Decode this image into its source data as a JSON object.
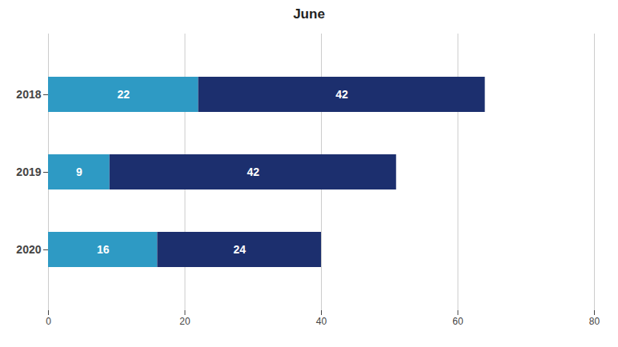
{
  "chart_data": {
    "type": "bar",
    "orientation": "horizontal",
    "stacked": true,
    "title": "June",
    "categories": [
      "2018",
      "2019",
      "2020"
    ],
    "series": [
      {
        "color": "#2e9ac4",
        "values": [
          22,
          9,
          16
        ]
      },
      {
        "color": "#1c2f6e",
        "values": [
          42,
          42,
          24
        ]
      }
    ],
    "xlim": [
      0,
      80
    ],
    "xticks": [
      0,
      20,
      40,
      60,
      80
    ],
    "grid": true,
    "data_labels": true
  }
}
